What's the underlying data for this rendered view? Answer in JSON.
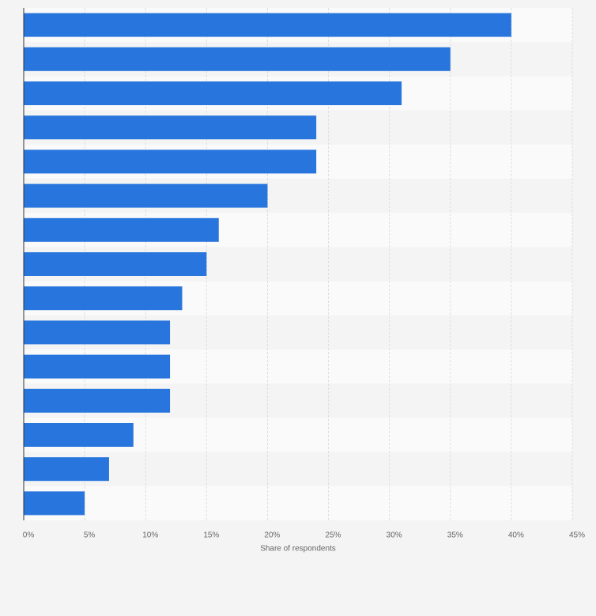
{
  "chart_data": {
    "type": "barh",
    "categories": [
      null,
      null,
      null,
      null,
      null,
      null,
      null,
      null,
      null,
      null,
      null,
      null,
      null,
      null,
      null
    ],
    "values": [
      40,
      35,
      31,
      24,
      24,
      20,
      16,
      15,
      13,
      12,
      12,
      12,
      9,
      7,
      5
    ],
    "color": "#2876dd",
    "xlabel": "Share of respondents",
    "xlim": [
      0,
      45
    ],
    "xticks": [
      {
        "value": 0,
        "label": "0%"
      },
      {
        "value": 5,
        "label": "5%"
      },
      {
        "value": 10,
        "label": "10%"
      },
      {
        "value": 15,
        "label": "15%"
      },
      {
        "value": 20,
        "label": "20%"
      },
      {
        "value": 25,
        "label": "25%"
      },
      {
        "value": 30,
        "label": "30%"
      },
      {
        "value": 35,
        "label": "35%"
      },
      {
        "value": 40,
        "label": "40%"
      },
      {
        "value": 45,
        "label": "45%"
      }
    ],
    "grid": true
  }
}
